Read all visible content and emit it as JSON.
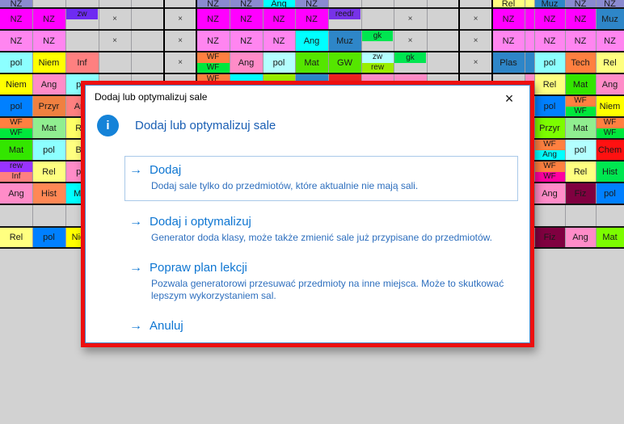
{
  "dialog": {
    "titlebar": "Dodaj lub optymalizuj sale",
    "close_glyph": "×",
    "info_icon_glyph": "i",
    "heading": "Dodaj lub optymalizuj sale",
    "arrow_glyph": "→",
    "commands": [
      {
        "title": "Dodaj",
        "desc": "Dodaj sale tylko do przedmiotów, które aktualnie nie mają sali.",
        "boxed": true
      },
      {
        "title": "Dodaj i optymalizuj",
        "desc": "Generator doda klasy, może także zmienić sale już przypisane do przedmiotów.",
        "boxed": false
      },
      {
        "title": "Popraw plan lekcji",
        "desc": "Pozwala generatorowi przesuwać przedmioty na inne miejsca. Może to skutkować lepszym wykorzystaniem sal.",
        "boxed": false
      },
      {
        "title": "Anuluj",
        "desc": "",
        "boxed": false
      }
    ],
    "colors": {
      "frame": "#ed0f0f",
      "inner_border": "#4a86c8",
      "heading": "#1a5fb4",
      "link": "#0e76d2",
      "desc": "#2e6fbe",
      "icon_bg": "#1583d8"
    }
  },
  "grid": {
    "x_marker": "×",
    "cells": [
      {
        "r": 0,
        "c": 0,
        "t": "NZ",
        "bg": "#8a8ad0"
      },
      {
        "r": 0,
        "c": 6,
        "t": "NZ",
        "bg": "#8a8ad0"
      },
      {
        "r": 0,
        "c": 7,
        "t": "NZ",
        "bg": "#8a8ad0"
      },
      {
        "r": 0,
        "c": 8,
        "t": "Ang",
        "bg": "#00ffff"
      },
      {
        "r": 0,
        "c": 9,
        "t": "NZ",
        "bg": "#8a8ad0"
      },
      {
        "r": 0,
        "c": 15,
        "t": "Rel",
        "bg": "#ffff80"
      },
      {
        "r": 0,
        "c": 16,
        "t": "",
        "bg": "#ffff80"
      },
      {
        "r": 0,
        "c": 17,
        "t": "Muz",
        "bg": "#2e86c8"
      },
      {
        "r": 0,
        "c": 18,
        "t": "NZ",
        "bg": "#8a8ad0"
      },
      {
        "r": 0,
        "c": 19,
        "t": "NZ",
        "bg": "#8a8ad0"
      },
      {
        "r": 1,
        "c": 0,
        "t": "NZ",
        "bg": "#ff00ff"
      },
      {
        "r": 1,
        "c": 1,
        "t": "NZ",
        "bg": "#ff00ff"
      },
      {
        "r": 1,
        "c": 2,
        "t": "zw",
        "bg": "#6e2bf2",
        "badge": true
      },
      {
        "r": 1,
        "c": 3,
        "t": "×",
        "x": true
      },
      {
        "r": 1,
        "c": 5,
        "t": "×",
        "x": true
      },
      {
        "r": 1,
        "c": 6,
        "t": "NZ",
        "bg": "#ff00ff"
      },
      {
        "r": 1,
        "c": 7,
        "t": "NZ",
        "bg": "#ff00ff"
      },
      {
        "r": 1,
        "c": 8,
        "t": "NZ",
        "bg": "#ff00ff"
      },
      {
        "r": 1,
        "c": 9,
        "t": "NZ",
        "bg": "#ff00ff"
      },
      {
        "r": 1,
        "c": 10,
        "t": "reedr",
        "bg": "#7733e8",
        "badge": true
      },
      {
        "r": 1,
        "c": 12,
        "t": "×",
        "x": true
      },
      {
        "r": 1,
        "c": 14,
        "t": "×",
        "x": true
      },
      {
        "r": 1,
        "c": 15,
        "t": "NZ",
        "bg": "#ff00ff"
      },
      {
        "r": 1,
        "c": 16,
        "t": "",
        "bg": "#ff00ff"
      },
      {
        "r": 1,
        "c": 17,
        "t": "NZ",
        "bg": "#ff00ff"
      },
      {
        "r": 1,
        "c": 18,
        "t": "NZ",
        "bg": "#ff00ff"
      },
      {
        "r": 1,
        "c": 19,
        "t": "Muz",
        "bg": "#2e86c8"
      },
      {
        "r": 2,
        "c": 0,
        "t": "NZ",
        "bg": "#ff85f0"
      },
      {
        "r": 2,
        "c": 1,
        "t": "NZ",
        "bg": "#ff85f0"
      },
      {
        "r": 2,
        "c": 3,
        "t": "×",
        "x": true
      },
      {
        "r": 2,
        "c": 5,
        "t": "×",
        "x": true
      },
      {
        "r": 2,
        "c": 6,
        "t": "NZ",
        "bg": "#ff85f0"
      },
      {
        "r": 2,
        "c": 7,
        "t": "NZ",
        "bg": "#ff85f0"
      },
      {
        "r": 2,
        "c": 8,
        "t": "NZ",
        "bg": "#ff85f0"
      },
      {
        "r": 2,
        "c": 9,
        "t": "Ang",
        "bg": "#00ffff"
      },
      {
        "r": 2,
        "c": 10,
        "t": "Muz",
        "bg": "#2e86c8"
      },
      {
        "r": 2,
        "c": 11,
        "t": "gk",
        "bg": "#00e650",
        "badge": true
      },
      {
        "r": 2,
        "c": 12,
        "t": "×",
        "x": true
      },
      {
        "r": 2,
        "c": 14,
        "t": "×",
        "x": true
      },
      {
        "r": 2,
        "c": 15,
        "t": "NZ",
        "bg": "#ff85f0"
      },
      {
        "r": 2,
        "c": 16,
        "t": "",
        "bg": "#ff85f0"
      },
      {
        "r": 2,
        "c": 17,
        "t": "NZ",
        "bg": "#ff85f0"
      },
      {
        "r": 2,
        "c": 18,
        "t": "NZ",
        "bg": "#ff85f0"
      },
      {
        "r": 2,
        "c": 19,
        "t": "NZ",
        "bg": "#ff85f0"
      },
      {
        "r": 3,
        "c": 0,
        "t": "pol",
        "bg": "#8cffff"
      },
      {
        "r": 3,
        "c": 1,
        "t": "Niem",
        "bg": "#ffff00"
      },
      {
        "r": 3,
        "c": 2,
        "t": "Inf",
        "bg": "#ff8080"
      },
      {
        "r": 3,
        "c": 5,
        "t": "×",
        "x": true
      },
      {
        "r": 3,
        "c": 6,
        "split": [
          {
            "t": "WF",
            "bg": "#ff8040"
          },
          {
            "t": "WF",
            "bg": "#00e83c"
          }
        ]
      },
      {
        "r": 3,
        "c": 7,
        "t": "Ang",
        "bg": "#ff8cc8"
      },
      {
        "r": 3,
        "c": 8,
        "t": "pol",
        "bg": "#b3ffff"
      },
      {
        "r": 3,
        "c": 9,
        "t": "Mat",
        "bg": "#55e600"
      },
      {
        "r": 3,
        "c": 10,
        "t": "GW",
        "bg": "#55e600"
      },
      {
        "r": 3,
        "c": 11,
        "split": [
          {
            "t": "zw",
            "bg": "#b3ffff"
          },
          {
            "t": "rew",
            "bg": "#99ee00"
          }
        ]
      },
      {
        "r": 3,
        "c": 12,
        "t": "gk",
        "bg": "#00e650",
        "badge": true
      },
      {
        "r": 3,
        "c": 14,
        "t": "×",
        "x": true
      },
      {
        "r": 3,
        "c": 15,
        "t": "Plas",
        "bg": "#2e86c8"
      },
      {
        "r": 3,
        "c": 16,
        "t": "",
        "bg": "#2e86c8"
      },
      {
        "r": 3,
        "c": 17,
        "t": "pol",
        "bg": "#8cffff"
      },
      {
        "r": 3,
        "c": 18,
        "t": "Tech",
        "bg": "#ff8040"
      },
      {
        "r": 3,
        "c": 19,
        "t": "Rel",
        "bg": "#ffff80"
      },
      {
        "r": 4,
        "c": 0,
        "t": "Niem",
        "bg": "#ffff00"
      },
      {
        "r": 4,
        "c": 1,
        "t": "Ang",
        "bg": "#ff8cc8"
      },
      {
        "r": 4,
        "c": 2,
        "t": "pol",
        "bg": "#8cffff"
      },
      {
        "r": 4,
        "c": 6,
        "split": [
          {
            "t": "WF",
            "bg": "#ff8040"
          },
          {
            "t": "WF",
            "bg": "#00e83c"
          }
        ]
      },
      {
        "r": 4,
        "c": 7,
        "t": "",
        "bg": "#00ffff"
      },
      {
        "r": 4,
        "c": 8,
        "t": "",
        "bg": "#99ee00"
      },
      {
        "r": 4,
        "c": 9,
        "t": "",
        "bg": "#2e86c8"
      },
      {
        "r": 4,
        "c": 10,
        "t": "",
        "bg": "#ee2222"
      },
      {
        "r": 4,
        "c": 11,
        "t": "",
        "bg": "#ff8cc8"
      },
      {
        "r": 4,
        "c": 12,
        "t": "",
        "bg": "#ff8cc8"
      },
      {
        "r": 4,
        "c": 16,
        "t": "",
        "bg": "#ff8cc8"
      },
      {
        "r": 4,
        "c": 17,
        "t": "Rel",
        "bg": "#ffff80"
      },
      {
        "r": 4,
        "c": 18,
        "t": "Mat",
        "bg": "#33e600"
      },
      {
        "r": 4,
        "c": 19,
        "t": "Ang",
        "bg": "#ff8cc8"
      },
      {
        "r": 5,
        "c": 0,
        "t": "pol",
        "bg": "#0080ff"
      },
      {
        "r": 5,
        "c": 1,
        "t": "Przyr",
        "bg": "#f08040"
      },
      {
        "r": 5,
        "c": 2,
        "t": "Ang",
        "bg": "#ff8080"
      },
      {
        "r": 5,
        "c": 16,
        "t": "",
        "bg": "#ee2222"
      },
      {
        "r": 5,
        "c": 17,
        "t": "pol",
        "bg": "#0080ff"
      },
      {
        "r": 5,
        "c": 18,
        "split": [
          {
            "t": "WF",
            "bg": "#ff8040"
          },
          {
            "t": "WF",
            "bg": "#00e83c"
          }
        ]
      },
      {
        "r": 5,
        "c": 19,
        "t": "Niem",
        "bg": "#ffff00"
      },
      {
        "r": 6,
        "c": 0,
        "split": [
          {
            "t": "WF",
            "bg": "#ff8040"
          },
          {
            "t": "WF",
            "bg": "#00e83c"
          }
        ]
      },
      {
        "r": 6,
        "c": 1,
        "t": "Mat",
        "bg": "#90ee90"
      },
      {
        "r": 6,
        "c": 2,
        "t": "Rel",
        "bg": "#ffff66"
      },
      {
        "r": 6,
        "c": 16,
        "t": "",
        "bg": "#0080ff"
      },
      {
        "r": 6,
        "c": 17,
        "t": "Przyr",
        "bg": "#7cfc00"
      },
      {
        "r": 6,
        "c": 18,
        "t": "Mat",
        "bg": "#90ee90"
      },
      {
        "r": 6,
        "c": 19,
        "split": [
          {
            "t": "WF",
            "bg": "#ff8040"
          },
          {
            "t": "WF",
            "bg": "#00e83c"
          }
        ]
      },
      {
        "r": 7,
        "c": 0,
        "t": "Mat",
        "bg": "#33e600"
      },
      {
        "r": 7,
        "c": 1,
        "t": "pol",
        "bg": "#8cffff"
      },
      {
        "r": 7,
        "c": 2,
        "t": "Bio",
        "bg": "#ffff80"
      },
      {
        "r": 7,
        "c": 16,
        "t": "",
        "bg": "#800040"
      },
      {
        "r": 7,
        "c": 17,
        "split": [
          {
            "t": "WF",
            "bg": "#ff8040"
          },
          {
            "t": "Ang",
            "bg": "#00ffff"
          }
        ]
      },
      {
        "r": 7,
        "c": 18,
        "t": "pol",
        "bg": "#b3ffff"
      },
      {
        "r": 7,
        "c": 19,
        "t": "Chem",
        "bg": "#ff1111"
      },
      {
        "r": 8,
        "c": 0,
        "split": [
          {
            "t": "rew",
            "bg": "#9933ff"
          },
          {
            "t": "Inf",
            "bg": "#ff8080"
          }
        ]
      },
      {
        "r": 8,
        "c": 1,
        "t": "Rel",
        "bg": "#ffff80"
      },
      {
        "r": 8,
        "c": 2,
        "t": "pol",
        "bg": "#ff8cc8"
      },
      {
        "r": 8,
        "c": 16,
        "t": "",
        "bg": "#8833ff"
      },
      {
        "r": 8,
        "c": 17,
        "split": [
          {
            "t": "WF",
            "bg": "#ff8040"
          },
          {
            "t": "WF",
            "bg": "#ff00a0"
          }
        ]
      },
      {
        "r": 8,
        "c": 18,
        "t": "Rel",
        "bg": "#ffff80"
      },
      {
        "r": 8,
        "c": 19,
        "t": "Hist",
        "bg": "#00e650"
      },
      {
        "r": 9,
        "c": 0,
        "t": "Ang",
        "bg": "#ff8cc8"
      },
      {
        "r": 9,
        "c": 1,
        "t": "Hist",
        "bg": "#ff8855"
      },
      {
        "r": 9,
        "c": 2,
        "t": "Muz",
        "bg": "#00ffff"
      },
      {
        "r": 9,
        "c": 16,
        "t": "",
        "bg": "#ff8040"
      },
      {
        "r": 9,
        "c": 17,
        "t": "Ang",
        "bg": "#ff8cc8"
      },
      {
        "r": 9,
        "c": 18,
        "t": "Fiz",
        "bg": "#800040"
      },
      {
        "r": 9,
        "c": 19,
        "t": "pol",
        "bg": "#0080ff"
      },
      {
        "r": 11,
        "c": 0,
        "t": "Rel",
        "bg": "#ffff80"
      },
      {
        "r": 11,
        "c": 1,
        "t": "pol",
        "bg": "#0080ff"
      },
      {
        "r": 11,
        "c": 2,
        "t": "Niem",
        "bg": "#ffff00"
      },
      {
        "r": 11,
        "c": 16,
        "t": "",
        "bg": "#ff8040"
      },
      {
        "r": 11,
        "c": 17,
        "t": "Fiz",
        "bg": "#800040"
      },
      {
        "r": 11,
        "c": 18,
        "t": "Ang",
        "bg": "#ff8cc8"
      },
      {
        "r": 11,
        "c": 19,
        "t": "Mat",
        "bg": "#7cfc00"
      }
    ]
  }
}
